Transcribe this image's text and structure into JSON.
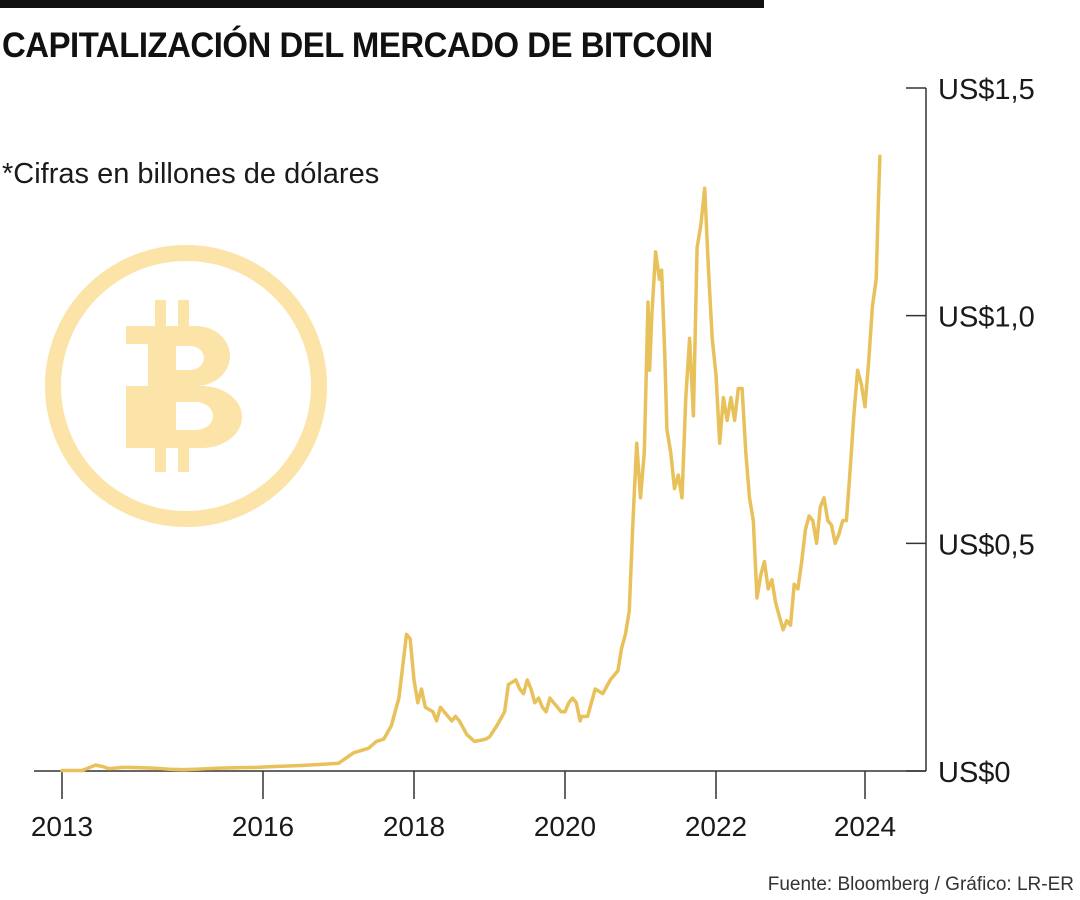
{
  "title": "CAPITALIZACIÓN DEL MERCADO DE BITCOIN",
  "subtitle": "*Cifras en billones de dólares",
  "source": "Fuente: Bloomberg / Gráfico: LR-ER",
  "colors": {
    "line": "#E8C15A",
    "logo": "#FCE3A8",
    "axis": "#333333",
    "text": "#111111"
  },
  "icon": "bitcoin-logo-icon",
  "chart_data": {
    "type": "line",
    "title": "CAPITALIZACIÓN DEL MERCADO DE BITCOIN",
    "ylabel": "",
    "xlabel": "",
    "ylim": [
      0,
      1.5
    ],
    "yaxis_position": "right",
    "grid": false,
    "y_ticks": [
      {
        "value": 0,
        "label": "US$0"
      },
      {
        "value": 0.5,
        "label": "US$0,5"
      },
      {
        "value": 1.0,
        "label": "US$1,0"
      },
      {
        "value": 1.5,
        "label": "US$1,5"
      }
    ],
    "x_ticks": [
      {
        "value": 2013,
        "label": "2013"
      },
      {
        "value": 2016,
        "label": "2016"
      },
      {
        "value": 2018,
        "label": "2018"
      },
      {
        "value": 2020,
        "label": "2020"
      },
      {
        "value": 2022,
        "label": "2022"
      },
      {
        "value": 2024,
        "label": "2024"
      }
    ],
    "series": [
      {
        "x": [
          2013.0,
          2013.3,
          2013.5,
          2013.6,
          2013.7,
          2013.9,
          2014.0,
          2014.2,
          2014.4,
          2014.6,
          2014.8,
          2015.0,
          2015.3,
          2015.6,
          2015.9,
          2016.2,
          2016.5,
          2016.8,
          2017.0,
          2017.2,
          2017.4,
          2017.5,
          2017.6,
          2017.7,
          2017.75,
          2017.8,
          2017.9,
          2017.95,
          2018.0,
          2018.05,
          2018.1,
          2018.15,
          2018.25,
          2018.3,
          2018.35,
          2018.45,
          2018.5,
          2018.55,
          2018.6,
          2018.7,
          2018.8,
          2018.9,
          2018.95,
          2019.0,
          2019.1,
          2019.2,
          2019.25,
          2019.35,
          2019.4,
          2019.45,
          2019.5,
          2019.55,
          2019.6,
          2019.65,
          2019.7,
          2019.75,
          2019.8,
          2019.85,
          2019.9,
          2019.95,
          2020.0,
          2020.05,
          2020.1,
          2020.15,
          2020.2,
          2020.22,
          2020.3,
          2020.4,
          2020.5,
          2020.6,
          2020.7,
          2020.75,
          2020.8,
          2020.85,
          2020.9,
          2020.95,
          2021.0,
          2021.05,
          2021.1,
          2021.12,
          2021.15,
          2021.2,
          2021.25,
          2021.28,
          2021.32,
          2021.35,
          2021.4,
          2021.45,
          2021.5,
          2021.55,
          2021.6,
          2021.65,
          2021.7,
          2021.75,
          2021.8,
          2021.85,
          2021.9,
          2021.95,
          2022.0,
          2022.05,
          2022.1,
          2022.15,
          2022.2,
          2022.25,
          2022.3,
          2022.35,
          2022.4,
          2022.45,
          2022.5,
          2022.55,
          2022.6,
          2022.65,
          2022.7,
          2022.75,
          2022.8,
          2022.85,
          2022.9,
          2022.95,
          2023.0,
          2023.05,
          2023.1,
          2023.15,
          2023.2,
          2023.25,
          2023.3,
          2023.35,
          2023.4,
          2023.45,
          2023.5,
          2023.55,
          2023.6,
          2023.65,
          2023.7,
          2023.75,
          2023.8,
          2023.85,
          2023.9,
          2023.95,
          2024.0,
          2024.05,
          2024.1,
          2024.15,
          2024.18,
          2024.2
        ],
        "values": [
          0.001,
          0.001,
          0.013,
          0.01,
          0.005,
          0.008,
          0.008,
          0.007,
          0.006,
          0.004,
          0.003,
          0.004,
          0.006,
          0.007,
          0.008,
          0.01,
          0.012,
          0.015,
          0.017,
          0.04,
          0.05,
          0.065,
          0.07,
          0.1,
          0.13,
          0.16,
          0.3,
          0.29,
          0.2,
          0.15,
          0.18,
          0.14,
          0.13,
          0.11,
          0.14,
          0.12,
          0.11,
          0.12,
          0.11,
          0.08,
          0.065,
          0.068,
          0.07,
          0.075,
          0.1,
          0.13,
          0.19,
          0.2,
          0.18,
          0.17,
          0.2,
          0.18,
          0.15,
          0.16,
          0.14,
          0.13,
          0.16,
          0.15,
          0.14,
          0.13,
          0.13,
          0.15,
          0.16,
          0.15,
          0.11,
          0.12,
          0.12,
          0.18,
          0.17,
          0.2,
          0.22,
          0.27,
          0.3,
          0.35,
          0.55,
          0.72,
          0.6,
          0.7,
          1.03,
          0.88,
          1.0,
          1.14,
          1.08,
          1.1,
          0.92,
          0.75,
          0.7,
          0.62,
          0.65,
          0.6,
          0.82,
          0.95,
          0.78,
          1.15,
          1.2,
          1.28,
          1.1,
          0.95,
          0.87,
          0.72,
          0.82,
          0.77,
          0.82,
          0.77,
          0.84,
          0.84,
          0.7,
          0.6,
          0.55,
          0.38,
          0.43,
          0.46,
          0.4,
          0.42,
          0.37,
          0.34,
          0.31,
          0.33,
          0.32,
          0.41,
          0.4,
          0.46,
          0.53,
          0.56,
          0.55,
          0.5,
          0.58,
          0.6,
          0.55,
          0.54,
          0.5,
          0.52,
          0.55,
          0.55,
          0.66,
          0.78,
          0.88,
          0.85,
          0.8,
          0.9,
          1.02,
          1.08,
          1.25,
          1.35
        ]
      }
    ]
  }
}
